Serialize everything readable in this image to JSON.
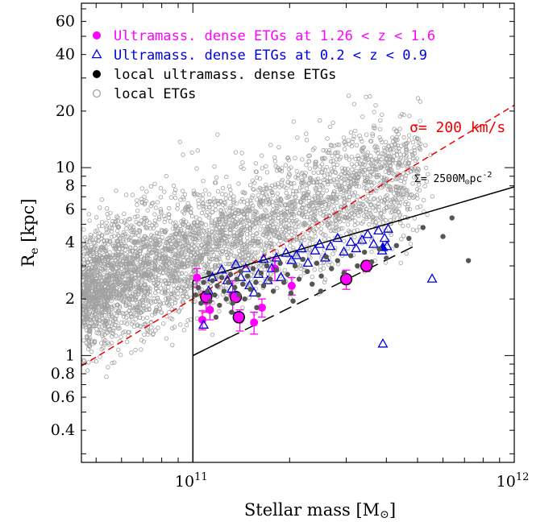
{
  "chart_data": {
    "type": "scatter",
    "xlabel": "Stellar mass [M",
    "xlabel_sym": "⊙",
    "xlabel_close": "]",
    "ylabel": "R",
    "ylabel_sub": "e",
    "ylabel_unit": " [kpc]",
    "x_scale": "log",
    "y_scale": "log",
    "xlim": [
      45000000000,
      1000000000000
    ],
    "ylim": [
      0.27,
      75
    ],
    "x_ticks": [
      {
        "value": 100000000000,
        "base": "10",
        "exp": "11"
      },
      {
        "value": 1000000000000,
        "base": "10",
        "exp": "12"
      }
    ],
    "y_ticks": [
      {
        "value": 0.4,
        "label": "0.4"
      },
      {
        "value": 0.6,
        "label": "0.6"
      },
      {
        "value": 0.8,
        "label": "0.8"
      },
      {
        "value": 1,
        "label": "1"
      },
      {
        "value": 2,
        "label": "2"
      },
      {
        "value": 4,
        "label": "4"
      },
      {
        "value": 6,
        "label": "6"
      },
      {
        "value": 8,
        "label": "8"
      },
      {
        "value": 10,
        "label": "10"
      },
      {
        "value": 20,
        "label": "20"
      },
      {
        "value": 40,
        "label": "40"
      },
      {
        "value": 60,
        "label": "60"
      }
    ],
    "legend": [
      {
        "label": "Ultramass. dense ETGs at 1.26 < z < 1.6",
        "marker": "filled-circle",
        "color": "#ff00ff"
      },
      {
        "label": "Ultramass. dense ETGs at 0.2 < z < 0.9",
        "marker": "open-triangle",
        "color": "#0000dd"
      },
      {
        "label": "local ultramass. dense ETGs",
        "marker": "filled-circle",
        "color": "#000000"
      },
      {
        "label": "local ETGs",
        "marker": "open-circle",
        "color": "#a0a0a0"
      }
    ],
    "legend_position": "top-left",
    "annotations": {
      "sigma": {
        "text": "σ= 200 km/s",
        "color": "#ee0000"
      },
      "sigma_surface": {
        "text": "Σ= 2500M",
        "sym": "⊙",
        "tail": "pc",
        "exp": "-2",
        "color": "#000000"
      }
    },
    "lines": {
      "sigma_200": {
        "style": "dashed",
        "color": "#ee0000",
        "points": [
          [
            45000000000,
            0.88
          ],
          [
            1000000000000,
            21.5
          ]
        ]
      },
      "surface_density": {
        "style": "solid",
        "color": "#000000",
        "points": [
          [
            100000000000,
            2.5
          ],
          [
            1000000000000,
            7.9
          ]
        ]
      },
      "dashed_lower": {
        "style": "dashed",
        "color": "#000000",
        "points": [
          [
            100000000000,
            1.0
          ],
          [
            500000000000,
            3.9
          ]
        ]
      },
      "lower_edge": {
        "style": "solid",
        "color": "#000000",
        "points": [
          [
            100000000000,
            1.0
          ],
          [
            130000000000,
            1.25
          ]
        ]
      },
      "mass_limit": {
        "style": "solid",
        "color": "#000000",
        "points": [
          [
            100000000000,
            0.27
          ],
          [
            100000000000,
            2.5
          ]
        ]
      }
    },
    "local_etgs_cloud": {
      "color": "#a0a0a0",
      "count": 4200,
      "trend": {
        "logx_start": 10.65,
        "logx_end": 11.7,
        "logy_start": 0.33,
        "logy_end": 1.0
      },
      "scatter_dex": 0.16
    },
    "series": [
      {
        "name": "Ultramass. dense ETGs at 1.26 < z < 1.6",
        "marker": "filled-circle",
        "color": "#ff00ff",
        "points": [
          {
            "x": 103000000000,
            "y": 2.6,
            "err": 0.3
          },
          {
            "x": 107000000000,
            "y": 1.55,
            "err": 0.18
          },
          {
            "x": 110000000000,
            "y": 1.95,
            "err": 0.25
          },
          {
            "x": 113000000000,
            "y": 1.75,
            "err": 0.2
          },
          {
            "x": 133000000000,
            "y": 2.1,
            "err": 0.4
          },
          {
            "x": 140000000000,
            "y": 1.55,
            "err": 0.2
          },
          {
            "x": 155000000000,
            "y": 1.5,
            "err": 0.2
          },
          {
            "x": 164000000000,
            "y": 1.8,
            "err": 0.2
          },
          {
            "x": 180000000000,
            "y": 2.9,
            "err": 0.4
          },
          {
            "x": 203000000000,
            "y": 2.35,
            "err": 0.25
          },
          {
            "x": 300000000000,
            "y": 2.55,
            "err": 0.3
          },
          {
            "x": 347000000000,
            "y": 3.0,
            "err": 0.2
          }
        ]
      },
      {
        "name": "Ultramass. dense ETGs at 0.2 < z < 0.9 (ringed)",
        "marker": "ringed-circle",
        "color": "#ff00ff",
        "points": [
          {
            "x": 110000000000,
            "y": 2.05
          },
          {
            "x": 136000000000,
            "y": 2.05
          },
          {
            "x": 139000000000,
            "y": 1.6
          },
          {
            "x": 300000000000,
            "y": 2.55
          },
          {
            "x": 347000000000,
            "y": 3.0
          }
        ]
      },
      {
        "name": "Ultramass. dense ETGs at 0.2 < z < 0.9",
        "marker": "open-triangle",
        "color": "#0000dd",
        "points": [
          {
            "x": 108000000000,
            "y": 1.45
          },
          {
            "x": 112000000000,
            "y": 2.2
          },
          {
            "x": 115000000000,
            "y": 2.6
          },
          {
            "x": 123000000000,
            "y": 2.85
          },
          {
            "x": 128000000000,
            "y": 2.5
          },
          {
            "x": 132000000000,
            "y": 2.25
          },
          {
            "x": 136000000000,
            "y": 3.05
          },
          {
            "x": 141000000000,
            "y": 2.6
          },
          {
            "x": 146000000000,
            "y": 2.9
          },
          {
            "x": 150000000000,
            "y": 2.35
          },
          {
            "x": 155000000000,
            "y": 2.15
          },
          {
            "x": 160000000000,
            "y": 2.7
          },
          {
            "x": 166000000000,
            "y": 3.25
          },
          {
            "x": 171000000000,
            "y": 2.5
          },
          {
            "x": 176000000000,
            "y": 2.9
          },
          {
            "x": 182000000000,
            "y": 3.3
          },
          {
            "x": 188000000000,
            "y": 2.6
          },
          {
            "x": 195000000000,
            "y": 3.5
          },
          {
            "x": 203000000000,
            "y": 3.2
          },
          {
            "x": 210000000000,
            "y": 3.4
          },
          {
            "x": 218000000000,
            "y": 3.7
          },
          {
            "x": 228000000000,
            "y": 3.1
          },
          {
            "x": 240000000000,
            "y": 3.6
          },
          {
            "x": 248000000000,
            "y": 3.9
          },
          {
            "x": 258000000000,
            "y": 3.3
          },
          {
            "x": 268000000000,
            "y": 3.8
          },
          {
            "x": 282000000000,
            "y": 4.2
          },
          {
            "x": 295000000000,
            "y": 3.55
          },
          {
            "x": 310000000000,
            "y": 4.0
          },
          {
            "x": 322000000000,
            "y": 3.7
          },
          {
            "x": 336000000000,
            "y": 4.1
          },
          {
            "x": 350000000000,
            "y": 4.4
          },
          {
            "x": 365000000000,
            "y": 3.9
          },
          {
            "x": 378000000000,
            "y": 4.6
          },
          {
            "x": 388000000000,
            "y": 3.6
          },
          {
            "x": 395000000000,
            "y": 4.2
          },
          {
            "x": 405000000000,
            "y": 4.7
          },
          {
            "x": 402000000000,
            "y": 3.8
          },
          {
            "x": 390000000000,
            "y": 1.15
          },
          {
            "x": 555000000000,
            "y": 2.55
          }
        ]
      },
      {
        "name": "Ultramass. dense ETGs at 0.2 < z < 0.9 (filled)",
        "marker": "filled-triangle",
        "color": "#0000dd",
        "points": [
          {
            "x": 390000000000,
            "y": 3.75
          }
        ]
      },
      {
        "name": "local ultramass. dense ETGs",
        "marker": "filled-circle-small",
        "color": "#555555",
        "points": [
          {
            "x": 102000000000,
            "y": 2.1
          },
          {
            "x": 104000000000,
            "y": 2.3
          },
          {
            "x": 106000000000,
            "y": 1.9
          },
          {
            "x": 108000000000,
            "y": 2.45
          },
          {
            "x": 111000000000,
            "y": 2.2
          },
          {
            "x": 113000000000,
            "y": 1.95
          },
          {
            "x": 115000000000,
            "y": 2.5
          },
          {
            "x": 117000000000,
            "y": 2.1
          },
          {
            "x": 119000000000,
            "y": 2.35
          },
          {
            "x": 121000000000,
            "y": 1.85
          },
          {
            "x": 123000000000,
            "y": 2.6
          },
          {
            "x": 125000000000,
            "y": 2.2
          },
          {
            "x": 127000000000,
            "y": 2.0
          },
          {
            "x": 129000000000,
            "y": 2.45
          },
          {
            "x": 131000000000,
            "y": 2.7
          },
          {
            "x": 133000000000,
            "y": 1.9
          },
          {
            "x": 135000000000,
            "y": 2.3
          },
          {
            "x": 137000000000,
            "y": 2.55
          },
          {
            "x": 139000000000,
            "y": 2.1
          },
          {
            "x": 141000000000,
            "y": 2.8
          },
          {
            "x": 143000000000,
            "y": 2.4
          },
          {
            "x": 145000000000,
            "y": 2.0
          },
          {
            "x": 148000000000,
            "y": 2.65
          },
          {
            "x": 151000000000,
            "y": 2.25
          },
          {
            "x": 154000000000,
            "y": 2.9
          },
          {
            "x": 157000000000,
            "y": 2.45
          },
          {
            "x": 160000000000,
            "y": 2.1
          },
          {
            "x": 163000000000,
            "y": 2.75
          },
          {
            "x": 166000000000,
            "y": 2.35
          },
          {
            "x": 170000000000,
            "y": 3.0
          },
          {
            "x": 174000000000,
            "y": 2.55
          },
          {
            "x": 178000000000,
            "y": 2.2
          },
          {
            "x": 182000000000,
            "y": 2.85
          },
          {
            "x": 187000000000,
            "y": 3.1
          },
          {
            "x": 192000000000,
            "y": 2.45
          },
          {
            "x": 197000000000,
            "y": 2.7
          },
          {
            "x": 202000000000,
            "y": 2.15
          },
          {
            "x": 208000000000,
            "y": 3.0
          },
          {
            "x": 214000000000,
            "y": 2.55
          },
          {
            "x": 220000000000,
            "y": 3.25
          },
          {
            "x": 227000000000,
            "y": 2.8
          },
          {
            "x": 235000000000,
            "y": 2.4
          },
          {
            "x": 243000000000,
            "y": 3.1
          },
          {
            "x": 251000000000,
            "y": 2.65
          },
          {
            "x": 260000000000,
            "y": 3.35
          },
          {
            "x": 270000000000,
            "y": 2.9
          },
          {
            "x": 282000000000,
            "y": 3.2
          },
          {
            "x": 295000000000,
            "y": 2.75
          },
          {
            "x": 310000000000,
            "y": 3.4
          },
          {
            "x": 325000000000,
            "y": 3.0
          },
          {
            "x": 342000000000,
            "y": 3.55
          },
          {
            "x": 360000000000,
            "y": 3.15
          },
          {
            "x": 380000000000,
            "y": 3.7
          },
          {
            "x": 400000000000,
            "y": 3.3
          },
          {
            "x": 430000000000,
            "y": 3.85
          },
          {
            "x": 470000000000,
            "y": 4.2
          },
          {
            "x": 520000000000,
            "y": 4.8
          },
          {
            "x": 600000000000,
            "y": 4.3
          },
          {
            "x": 640000000000,
            "y": 5.4
          },
          {
            "x": 720000000000,
            "y": 3.2
          },
          {
            "x": 118000000000,
            "y": 1.6
          },
          {
            "x": 132000000000,
            "y": 1.7
          },
          {
            "x": 112000000000,
            "y": 2.75
          },
          {
            "x": 205000000000,
            "y": 1.95
          },
          {
            "x": 250000000000,
            "y": 2.2
          },
          {
            "x": 158000000000,
            "y": 1.8
          }
        ]
      }
    ]
  }
}
